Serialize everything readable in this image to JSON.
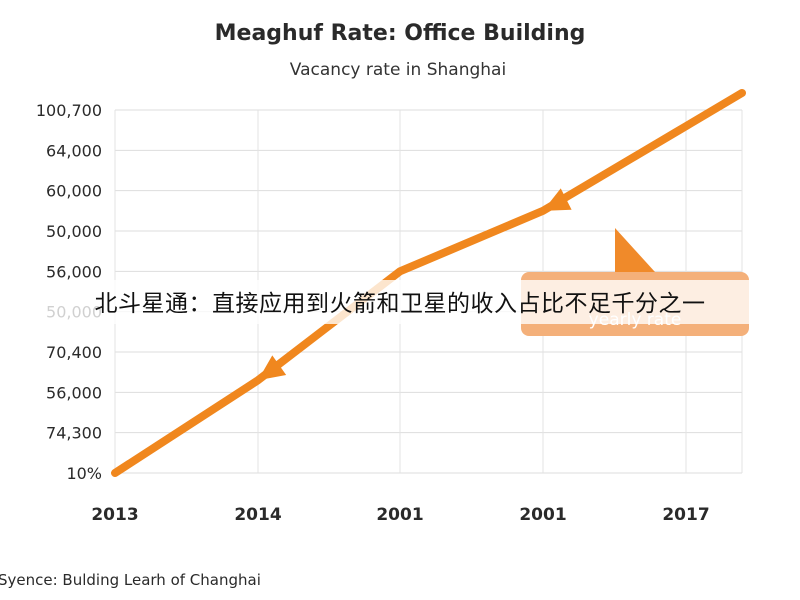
{
  "chart_data": {
    "type": "line",
    "title": "Meaghuf Rate: Office Building",
    "subtitle": "Vacancy rate in Shanghai",
    "source": "Syence: Bulding Learh of Changhai",
    "categories": [
      "2013",
      "2014",
      "2001",
      "2001",
      "2017"
    ],
    "y_tick_labels": [
      "100,700",
      "64,000",
      "60,000",
      "50,000",
      "56,000",
      "50,000",
      "70,400",
      "56,000",
      "74,300",
      "10%"
    ],
    "series": [
      {
        "values": [
          0,
          2.3,
          5,
          6.5,
          8.6
        ]
      }
    ],
    "ylim": [
      0,
      9
    ],
    "grid": true,
    "line_color": "#F0871E",
    "callout": {
      "text": "yearly rate",
      "color": "#F4B07A"
    }
  },
  "overlay_caption": "北斗星通：直接应用到火箭和卫星的收入占比不足千分之一"
}
